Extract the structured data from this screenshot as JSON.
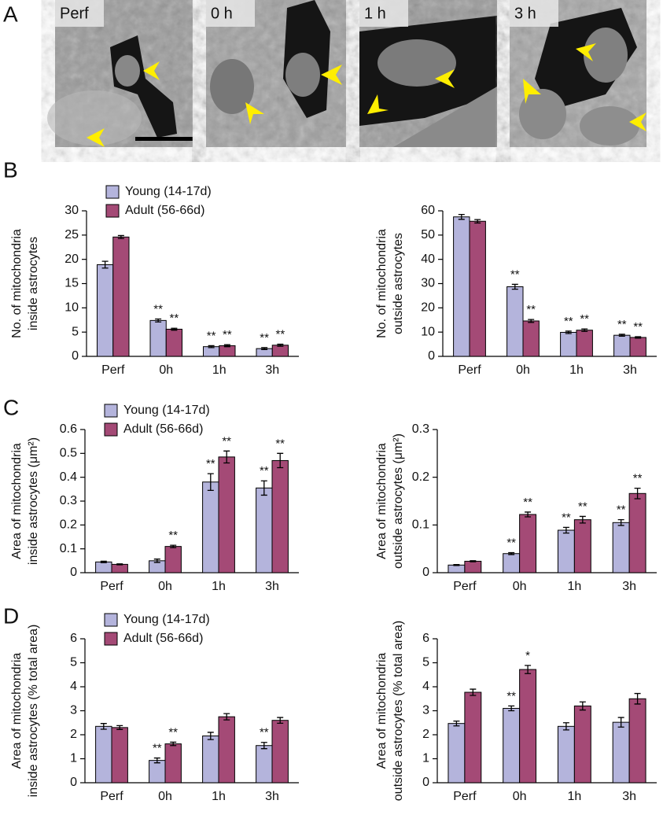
{
  "panel_labels": [
    "A",
    "B",
    "C",
    "D"
  ],
  "micrographs": {
    "labels": [
      "Perf",
      "0 h",
      "1 h",
      "3 h"
    ]
  },
  "chart_data": [
    {
      "type": "bar",
      "ylabel": [
        "No. of mitochondria",
        "inside astrocytes"
      ],
      "categories": [
        "Perf",
        "0h",
        "1h",
        "3h"
      ],
      "legend": "upper left",
      "series": [
        {
          "name": "Young (14-17d)",
          "color": "#b4b4dc",
          "values": [
            18.9,
            7.4,
            2.0,
            1.6
          ],
          "errors": [
            0.7,
            0.3,
            0.2,
            0.2
          ],
          "sig": [
            null,
            "**",
            "**",
            "**"
          ]
        },
        {
          "name": "Adult (56-66d)",
          "color": "#a44a76",
          "values": [
            24.6,
            5.6,
            2.2,
            2.3
          ],
          "errors": [
            0.3,
            0.2,
            0.2,
            0.2
          ],
          "sig": [
            null,
            "**",
            "**",
            "**"
          ]
        }
      ],
      "ylim": [
        0,
        30
      ],
      "yticks": [
        0,
        5,
        10,
        15,
        20,
        25,
        30
      ]
    },
    {
      "type": "bar",
      "ylabel": [
        "No. of mitochondria",
        "outside astrocytes"
      ],
      "categories": [
        "Perf",
        "0h",
        "1h",
        "3h"
      ],
      "series": [
        {
          "color": "#b4b4dc",
          "values": [
            57.5,
            28.7,
            9.9,
            8.7
          ],
          "errors": [
            1,
            1,
            0.5,
            0.4
          ],
          "sig": [
            null,
            "**",
            "**",
            "**"
          ]
        },
        {
          "color": "#a44a76",
          "values": [
            55.7,
            14.6,
            10.8,
            7.8
          ],
          "errors": [
            0.7,
            0.6,
            0.5,
            0.3
          ],
          "sig": [
            null,
            "**",
            "**",
            "**"
          ]
        }
      ],
      "ylim": [
        0,
        60
      ],
      "yticks": [
        0,
        10,
        20,
        30,
        40,
        50,
        60
      ]
    },
    {
      "type": "bar",
      "ylabel": [
        "Area of mitochondria",
        "inside astrocytes (μm²)"
      ],
      "categories": [
        "Perf",
        "0h",
        "1h",
        "3h"
      ],
      "legend": "upper left",
      "series": [
        {
          "name": "Young (14-17d)",
          "color": "#b4b4dc",
          "values": [
            0.045,
            0.05,
            0.38,
            0.355
          ],
          "errors": [
            0.003,
            0.007,
            0.035,
            0.03
          ],
          "sig": [
            null,
            null,
            "**",
            "**"
          ]
        },
        {
          "name": "Adult (56-66d)",
          "color": "#a44a76",
          "values": [
            0.035,
            0.11,
            0.485,
            0.47
          ],
          "errors": [
            0.002,
            0.005,
            0.025,
            0.03
          ],
          "sig": [
            null,
            "**",
            "**",
            "**"
          ]
        }
      ],
      "ylim": [
        0,
        0.6
      ],
      "yticks": [
        0,
        0.1,
        0.2,
        0.3,
        0.4,
        0.5,
        0.6
      ]
    },
    {
      "type": "bar",
      "ylabel": [
        "Area of mitochondria",
        "outside astrocytes (μm²)"
      ],
      "categories": [
        "Perf",
        "0h",
        "1h",
        "3h"
      ],
      "series": [
        {
          "color": "#b4b4dc",
          "values": [
            0.016,
            0.04,
            0.089,
            0.105
          ],
          "errors": [
            0.001,
            0.002,
            0.006,
            0.006
          ],
          "sig": [
            null,
            "**",
            "**",
            "**"
          ]
        },
        {
          "color": "#a44a76",
          "values": [
            0.024,
            0.122,
            0.111,
            0.166
          ],
          "errors": [
            0.001,
            0.005,
            0.007,
            0.011
          ],
          "sig": [
            null,
            "**",
            "**",
            "**"
          ]
        }
      ],
      "ylim": [
        0,
        0.3
      ],
      "yticks": [
        0,
        0.1,
        0.2,
        0.3
      ]
    },
    {
      "type": "bar",
      "ylabel": [
        "Area of mitochondria",
        "inside astrocytes (% total area)"
      ],
      "categories": [
        "Perf",
        "0h",
        "1h",
        "3h"
      ],
      "legend": "upper left",
      "series": [
        {
          "name": "Young (14-17d)",
          "color": "#b4b4dc",
          "values": [
            2.35,
            0.93,
            1.95,
            1.55
          ],
          "errors": [
            0.12,
            0.1,
            0.15,
            0.13
          ],
          "sig": [
            null,
            "**",
            null,
            "**"
          ]
        },
        {
          "name": "Adult (56-66d)",
          "color": "#a44a76",
          "values": [
            2.3,
            1.62,
            2.75,
            2.6
          ],
          "errors": [
            0.08,
            0.07,
            0.13,
            0.12
          ],
          "sig": [
            null,
            "**",
            null,
            null
          ]
        }
      ],
      "ylim": [
        0,
        6
      ],
      "yticks": [
        0,
        1,
        2,
        3,
        4,
        5,
        6
      ]
    },
    {
      "type": "bar",
      "ylabel": [
        "Area of mitochondria",
        "outside astrocytes (% total area)"
      ],
      "categories": [
        "Perf",
        "0h",
        "1h",
        "3h"
      ],
      "series": [
        {
          "color": "#b4b4dc",
          "values": [
            2.47,
            3.1,
            2.35,
            2.52
          ],
          "errors": [
            0.1,
            0.1,
            0.15,
            0.2
          ],
          "sig": [
            null,
            "**",
            null,
            null
          ]
        },
        {
          "color": "#a44a76",
          "values": [
            3.77,
            4.72,
            3.2,
            3.5
          ],
          "errors": [
            0.13,
            0.17,
            0.17,
            0.22
          ],
          "sig": [
            null,
            "*",
            null,
            null
          ]
        }
      ],
      "ylim": [
        0,
        6
      ],
      "yticks": [
        0,
        1,
        2,
        3,
        4,
        5,
        6
      ]
    }
  ]
}
